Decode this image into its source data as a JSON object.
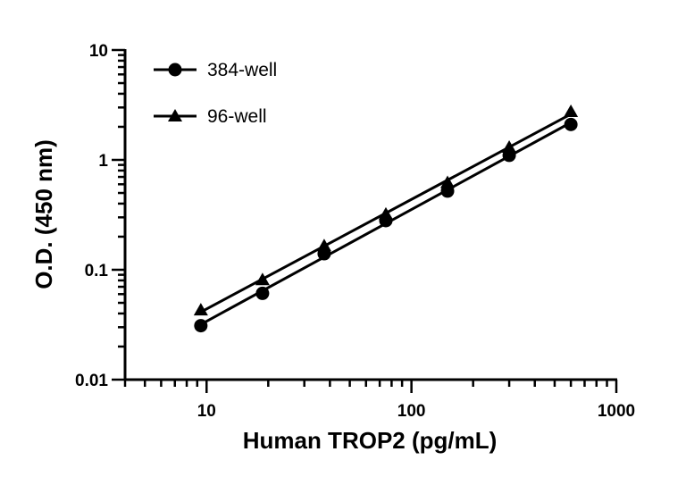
{
  "chart_data": {
    "type": "line",
    "title": "",
    "xlabel": "Human TROP2 (pg/mL)",
    "ylabel": "O.D. (450 nm)",
    "x_scale": "log",
    "y_scale": "log",
    "xlim": [
      4,
      1000
    ],
    "ylim": [
      0.01,
      10
    ],
    "x_ticks": [
      10,
      100,
      1000
    ],
    "x_tick_labels": [
      "10",
      "100",
      "1000"
    ],
    "y_ticks": [
      0.01,
      0.1,
      1,
      10
    ],
    "y_tick_labels": [
      "0.01",
      "0.1",
      "1",
      "10"
    ],
    "grid": false,
    "legend_position": "top-left",
    "series": [
      {
        "name": "384-well",
        "marker": "circle",
        "x": [
          9.375,
          18.75,
          37.5,
          75,
          150,
          300,
          600
        ],
        "y": [
          0.031,
          0.061,
          0.14,
          0.28,
          0.52,
          1.1,
          2.1
        ]
      },
      {
        "name": "96-well",
        "marker": "triangle",
        "x": [
          9.375,
          18.75,
          37.5,
          75,
          150,
          300,
          600
        ],
        "y": [
          0.043,
          0.081,
          0.165,
          0.32,
          0.62,
          1.3,
          2.75
        ]
      }
    ]
  }
}
